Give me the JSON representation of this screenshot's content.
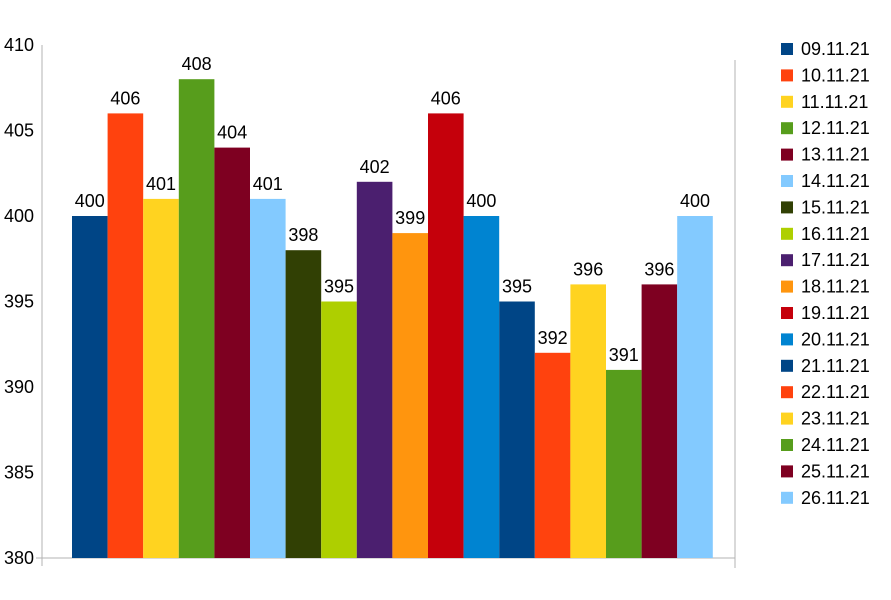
{
  "chart_data": {
    "type": "bar",
    "title": "",
    "xlabel": "",
    "ylabel": "",
    "ylim": [
      380,
      410
    ],
    "yticks": [
      380,
      385,
      390,
      395,
      400,
      405,
      410
    ],
    "grid": false,
    "legend_position": "right",
    "series": [
      {
        "name": "09.11.21",
        "value": 400,
        "color": "#004586"
      },
      {
        "name": "10.11.21",
        "value": 406,
        "color": "#FF420E"
      },
      {
        "name": "11.11.21",
        "value": 401,
        "color": "#FFD320"
      },
      {
        "name": "12.11.21",
        "value": 408,
        "color": "#579D1C"
      },
      {
        "name": "13.11.21",
        "value": 404,
        "color": "#7E0021"
      },
      {
        "name": "14.11.21",
        "value": 401,
        "color": "#83CAFF"
      },
      {
        "name": "15.11.21",
        "value": 398,
        "color": "#314004"
      },
      {
        "name": "16.11.21",
        "value": 395,
        "color": "#AECF00"
      },
      {
        "name": "17.11.21",
        "value": 402,
        "color": "#4B1F6F"
      },
      {
        "name": "18.11.21",
        "value": 399,
        "color": "#FF950E"
      },
      {
        "name": "19.11.21",
        "value": 406,
        "color": "#C5000B"
      },
      {
        "name": "20.11.21",
        "value": 400,
        "color": "#0084D1"
      },
      {
        "name": "21.11.21",
        "value": 395,
        "color": "#004586"
      },
      {
        "name": "22.11.21",
        "value": 392,
        "color": "#FF420E"
      },
      {
        "name": "23.11.21",
        "value": 396,
        "color": "#FFD320"
      },
      {
        "name": "24.11.21",
        "value": 391,
        "color": "#579D1C"
      },
      {
        "name": "25.11.21",
        "value": 396,
        "color": "#7E0021"
      },
      {
        "name": "26.11.21",
        "value": 400,
        "color": "#83CAFF"
      }
    ]
  }
}
